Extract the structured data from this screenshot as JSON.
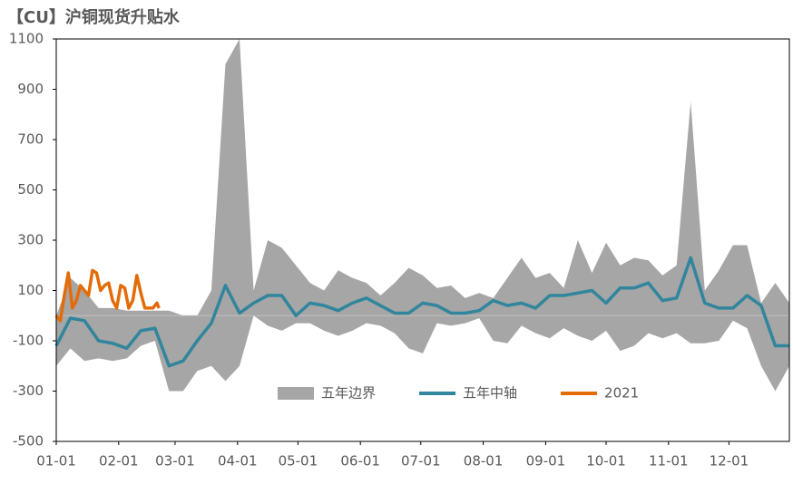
{
  "chart_data": {
    "type": "line",
    "title": "【CU】沪铜现货升贴水",
    "x": [
      0,
      7,
      14,
      21,
      28,
      35,
      42,
      49,
      56,
      63,
      70,
      77,
      84,
      91,
      98,
      105,
      112,
      119,
      126,
      133,
      140,
      147,
      154,
      161,
      168,
      175,
      182,
      189,
      196,
      203,
      210,
      217,
      224,
      231,
      238,
      245,
      252,
      259,
      266,
      273,
      280,
      287,
      294,
      301,
      308,
      315,
      322,
      329,
      336,
      343,
      350,
      357,
      364
    ],
    "series": [
      {
        "name": "五年边界",
        "color": "#a6a6a6",
        "upper": [
          0,
          150,
          100,
          30,
          30,
          20,
          20,
          20,
          20,
          0,
          0,
          100,
          1000,
          1100,
          100,
          300,
          270,
          200,
          130,
          100,
          180,
          150,
          130,
          80,
          130,
          190,
          160,
          110,
          120,
          70,
          90,
          70,
          150,
          230,
          150,
          170,
          110,
          300,
          170,
          290,
          200,
          230,
          220,
          160,
          200,
          850,
          100,
          180,
          280,
          280,
          50,
          130,
          50
        ],
        "lower": [
          -200,
          -130,
          -180,
          -170,
          -180,
          -170,
          -120,
          -100,
          -300,
          -300,
          -220,
          -200,
          -260,
          -200,
          0,
          -40,
          -60,
          -30,
          -30,
          -60,
          -80,
          -60,
          -30,
          -40,
          -70,
          -130,
          -150,
          -30,
          -40,
          -30,
          -10,
          -100,
          -110,
          -40,
          -70,
          -90,
          -50,
          -80,
          -100,
          -60,
          -140,
          -120,
          -70,
          -90,
          -70,
          -110,
          -110,
          -100,
          -20,
          -50,
          -200,
          -300,
          -200
        ]
      },
      {
        "name": "五年中轴",
        "color": "#31859c",
        "values": [
          -120,
          -10,
          -20,
          -100,
          -110,
          -130,
          -60,
          -50,
          -200,
          -180,
          -100,
          -30,
          120,
          10,
          50,
          80,
          80,
          0,
          50,
          40,
          20,
          50,
          70,
          40,
          10,
          10,
          50,
          40,
          10,
          10,
          20,
          60,
          40,
          50,
          30,
          80,
          80,
          90,
          100,
          50,
          110,
          110,
          130,
          60,
          70,
          230,
          50,
          30,
          30,
          80,
          40,
          -120,
          -120
        ]
      },
      {
        "name": "2021",
        "color": "#e36c09",
        "x": [
          0,
          2,
          4,
          6,
          8,
          10,
          12,
          14,
          16,
          18,
          20,
          22,
          24,
          26,
          28,
          30,
          32,
          34,
          36,
          38,
          40,
          42,
          44,
          46,
          48,
          50,
          51
        ],
        "values": [
          0,
          -20,
          80,
          170,
          30,
          60,
          120,
          100,
          80,
          180,
          170,
          100,
          120,
          130,
          60,
          30,
          120,
          110,
          30,
          60,
          160,
          90,
          30,
          30,
          30,
          50,
          30
        ]
      }
    ],
    "xlim": [
      0,
      364
    ],
    "xticks": [
      {
        "value": 0,
        "label": "01-01"
      },
      {
        "value": 31,
        "label": "02-01"
      },
      {
        "value": 59,
        "label": "03-01"
      },
      {
        "value": 90,
        "label": "04-01"
      },
      {
        "value": 120,
        "label": "05-01"
      },
      {
        "value": 151,
        "label": "06-01"
      },
      {
        "value": 181,
        "label": "07-01"
      },
      {
        "value": 212,
        "label": "08-01"
      },
      {
        "value": 243,
        "label": "09-01"
      },
      {
        "value": 273,
        "label": "10-01"
      },
      {
        "value": 304,
        "label": "11-01"
      },
      {
        "value": 334,
        "label": "12-01"
      }
    ],
    "ylim": [
      -500,
      1100
    ],
    "yticks": [
      -500,
      -300,
      -100,
      100,
      300,
      500,
      700,
      900,
      1100
    ],
    "grid": false,
    "legend": "bottom"
  }
}
